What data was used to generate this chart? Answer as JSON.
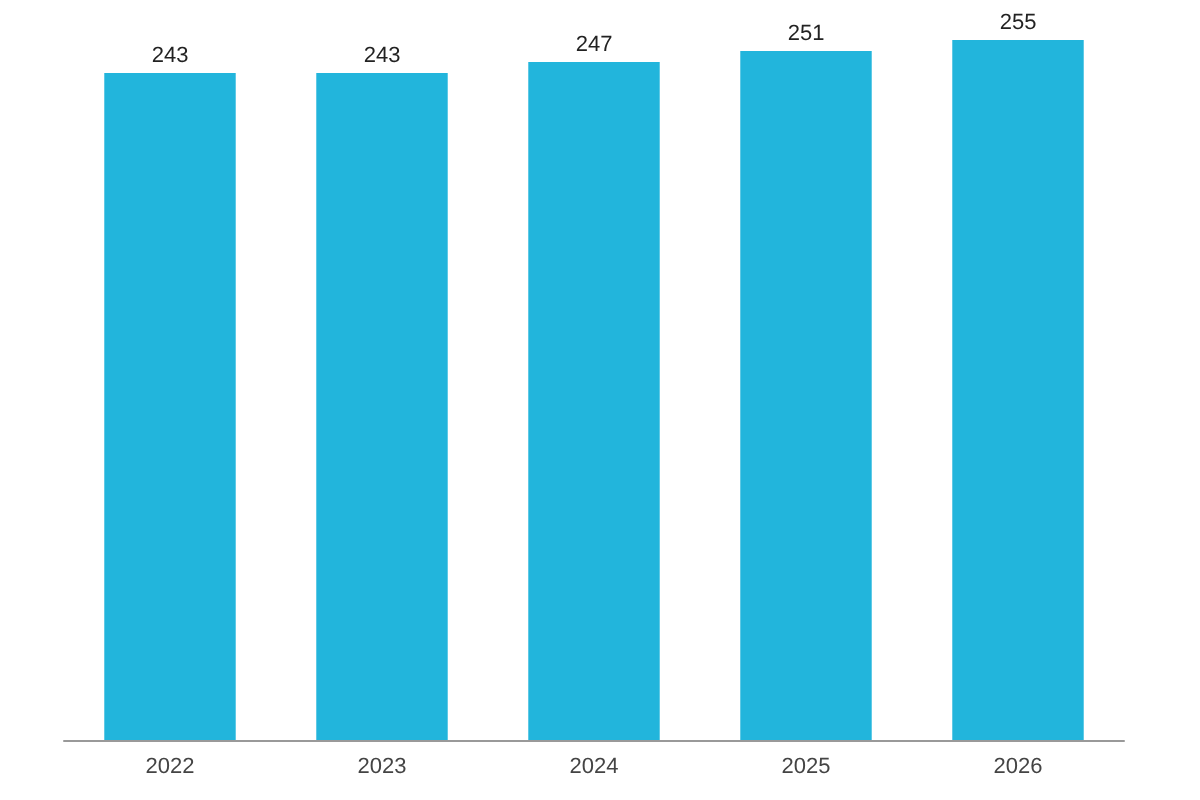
{
  "chart_data": {
    "type": "bar",
    "categories": [
      "2022",
      "2023",
      "2024",
      "2025",
      "2026"
    ],
    "values": [
      243,
      243,
      247,
      251,
      255
    ],
    "color": "#22b5dc",
    "data_labels": true,
    "grid": false
  }
}
